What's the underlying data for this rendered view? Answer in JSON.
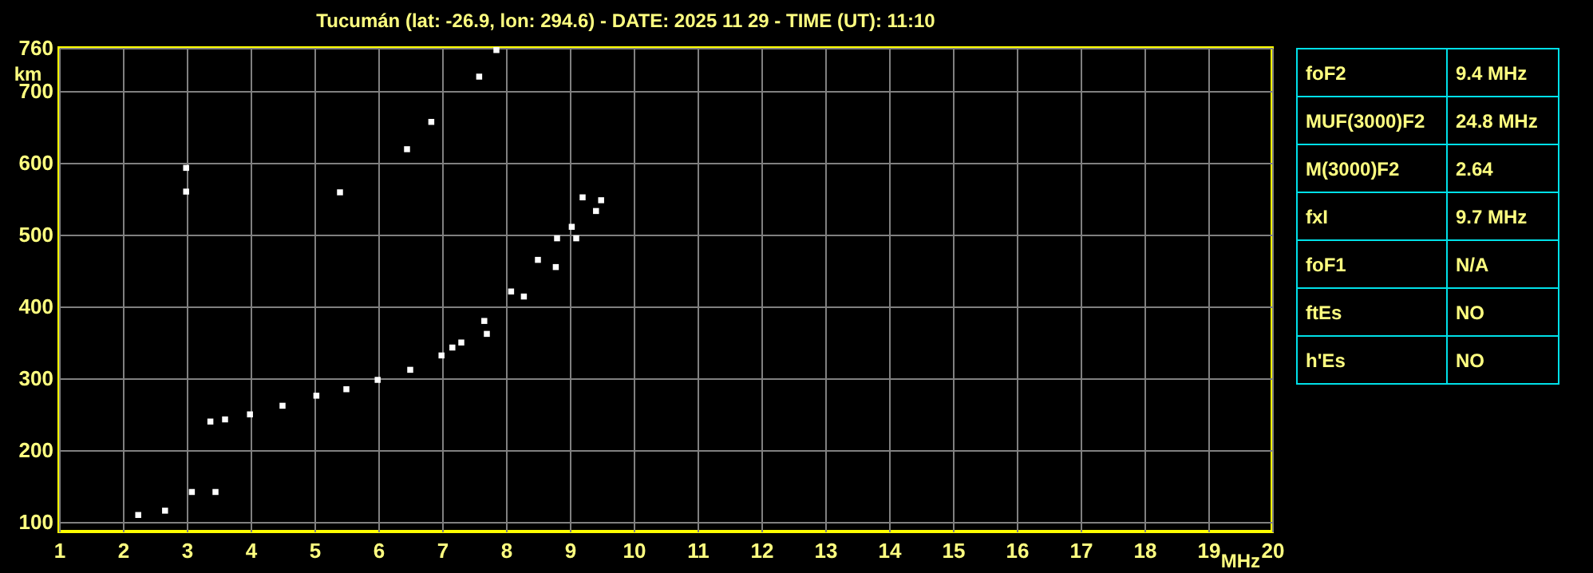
{
  "chart_data": [
    {
      "type": "scatter",
      "title": "Tucumán (lat: -26.9, lon: 294.6) - DATE: 2025 11 29 - TIME (UT): 11:10",
      "xlabel": "MHz",
      "ylabel": "km",
      "xlim": [
        1,
        20
      ],
      "ylim": [
        87,
        760
      ],
      "xticks": [
        1,
        2,
        3,
        4,
        5,
        6,
        7,
        8,
        9,
        10,
        11,
        12,
        13,
        14,
        15,
        16,
        17,
        18,
        19,
        20
      ],
      "yticks": [
        100,
        200,
        300,
        400,
        500,
        600,
        700,
        760
      ],
      "grid": true,
      "marker": "square",
      "series": [
        {
          "color": "#ffffff",
          "x": [
            3.37,
            3.6,
            3.99,
            4.5,
            5.03,
            5.5,
            5.99,
            6.5,
            6.99,
            7.3,
            7.66,
            8.08,
            8.5,
            8.8,
            9.03,
            9.2
          ],
          "values": [
            240,
            243,
            250,
            262,
            276,
            285,
            298,
            312,
            332,
            350,
            380,
            421,
            465,
            495,
            511,
            552
          ]
        },
        {
          "color": "#ffffff",
          "x": [
            7.16,
            7.7,
            8.28,
            8.78,
            9.1,
            9.41,
            9.49
          ],
          "values": [
            343,
            362,
            414,
            455,
            495,
            533,
            548
          ]
        },
        {
          "color": "#ffffff",
          "x": [
            5.4,
            6.45,
            6.83,
            7.58,
            7.85
          ],
          "values": [
            559,
            619,
            657,
            720,
            757
          ]
        },
        {
          "color": "#ffffff",
          "x": [
            2.24,
            2.66,
            3.08,
            3.45,
            2.99,
            2.99
          ],
          "values": [
            110,
            116,
            142,
            142,
            560,
            593
          ]
        }
      ]
    },
    {
      "type": "other",
      "annotations": [
        "foF2",
        "9.4 MHz",
        "MUF(3000)F2",
        "24.8 MHz",
        "M(3000)F2",
        "2.64",
        "fxI",
        "9.7 MHz",
        "foF1",
        "N/A",
        "ftEs",
        "NO",
        "h'Es",
        "NO"
      ]
    }
  ]
}
